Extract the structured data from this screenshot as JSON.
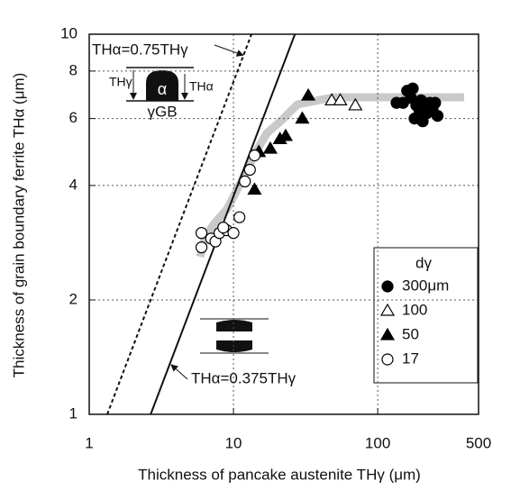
{
  "chart_data": {
    "type": "scatter",
    "x_label": "Thickness of pancake austenite THγ (μm)",
    "y_label": "Thickness of grain boundary ferrite THα (μm)",
    "log_x": true,
    "log_y": true,
    "grid": true,
    "xlim": [
      1,
      500
    ],
    "xticks": [
      1,
      10,
      100,
      500
    ],
    "ylim": [
      1,
      10
    ],
    "yticks": [
      1,
      2,
      4,
      6,
      8,
      10
    ],
    "legend_title": "dγ",
    "legend_position": "lower right",
    "series": [
      {
        "name": "300μm",
        "marker": "circle",
        "filled": true,
        "color": "#000000",
        "x": [
          135,
          150,
          160,
          170,
          175,
          185,
          195,
          200,
          210,
          220,
          230,
          240,
          250,
          260,
          180,
          205
        ],
        "values": [
          6.6,
          6.6,
          7.1,
          6.8,
          7.2,
          6.5,
          6.3,
          6.7,
          6.5,
          6.2,
          6.6,
          6.4,
          6.6,
          6.1,
          6.0,
          5.9
        ]
      },
      {
        "name": "100",
        "marker": "triangle",
        "filled": false,
        "color": "#000000",
        "x": [
          48,
          55,
          70
        ],
        "values": [
          6.7,
          6.7,
          6.5
        ]
      },
      {
        "name": "50",
        "marker": "triangle",
        "filled": true,
        "color": "#000000",
        "x": [
          14,
          15,
          18,
          21,
          23,
          30,
          33
        ],
        "values": [
          3.9,
          4.9,
          5.0,
          5.3,
          5.4,
          6.0,
          6.9
        ]
      },
      {
        "name": "17",
        "marker": "circle",
        "filled": false,
        "color": "#000000",
        "x": [
          6,
          6,
          7,
          7.5,
          8,
          9,
          10,
          11,
          12,
          13,
          14,
          8.5
        ],
        "values": [
          3.0,
          2.75,
          2.9,
          2.85,
          3.0,
          3.05,
          3.0,
          3.3,
          4.1,
          4.4,
          4.8,
          3.1
        ]
      }
    ],
    "reference_lines": [
      {
        "label": "THα=0.75THγ",
        "coef": 0.75,
        "style": "dotted"
      },
      {
        "label": "THα=0.375THγ",
        "coef": 0.375,
        "style": "solid"
      }
    ],
    "inset_labels": {
      "th_gamma": "THγ",
      "th_alpha": "THα",
      "alpha": "α",
      "gamma_gb": "γGB"
    }
  }
}
